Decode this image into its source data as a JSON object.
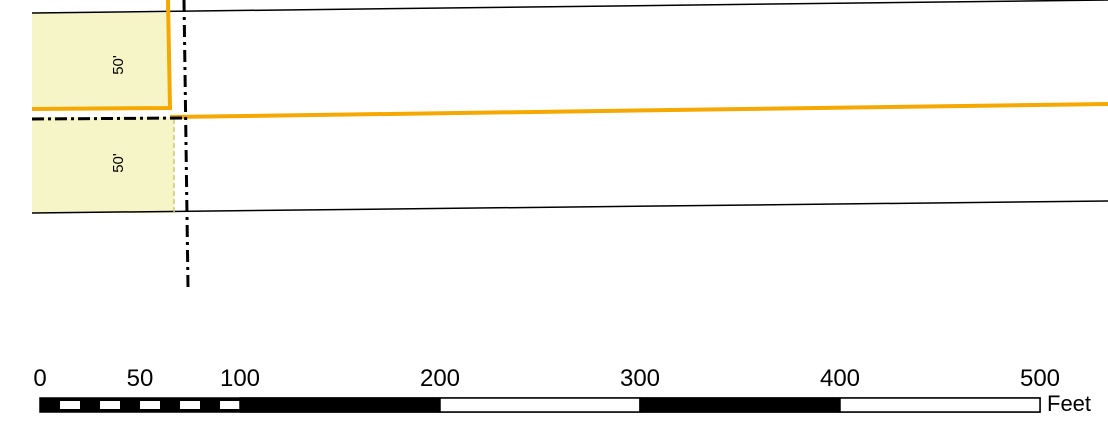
{
  "parcels": [
    {
      "id": "north",
      "dimension_label": "50'"
    },
    {
      "id": "south",
      "dimension_label": "50'"
    }
  ],
  "scale_bar": {
    "unit_label": "Feet",
    "tick_labels": [
      "0",
      "50",
      "100",
      "200",
      "300",
      "400",
      "500"
    ],
    "tick_values": [
      0,
      50,
      100,
      200,
      300,
      400,
      500
    ]
  },
  "colors": {
    "parcel_fill": "#f5f5c8",
    "parcel_outline": "#f5a800",
    "subdivision_line": "#c8c878",
    "centerline": "#000000"
  }
}
